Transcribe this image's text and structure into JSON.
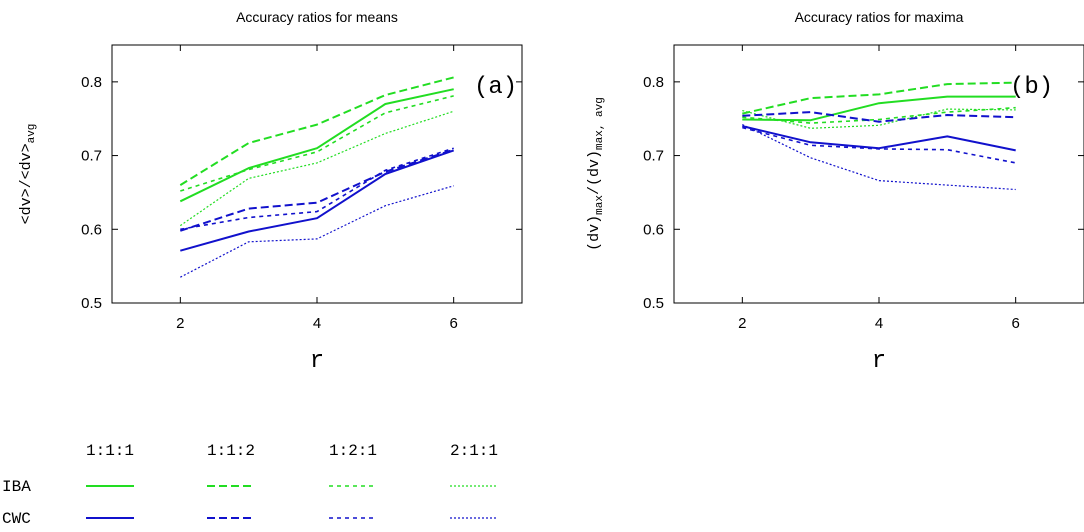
{
  "colors": {
    "IBA": "#22dd22",
    "CWC": "#1111cc"
  },
  "legend": {
    "ratios": [
      "1:1:1",
      "1:1:2",
      "1:2:1",
      "2:1:1"
    ],
    "rows": [
      "IBA",
      "CWC"
    ]
  },
  "chart_data": [
    {
      "type": "line",
      "title": "Accuracy ratios for means",
      "panel_label": "(a)",
      "xlabel": "r",
      "ylabel_main": "<dv>/<dv>",
      "ylabel_sub": "avg",
      "x": [
        2,
        3,
        4,
        5,
        6
      ],
      "xlim": [
        1,
        7
      ],
      "ylim": [
        0.5,
        0.85
      ],
      "xticks": [
        "2",
        "4",
        "6"
      ],
      "yticks": [
        "0.5",
        "0.6",
        "0.7",
        "0.8"
      ],
      "series": [
        {
          "group": "IBA",
          "ratio": "1:1:1",
          "values": [
            0.638,
            0.683,
            0.71,
            0.77,
            0.79
          ]
        },
        {
          "group": "IBA",
          "ratio": "1:1:2",
          "values": [
            0.66,
            0.717,
            0.742,
            0.782,
            0.806
          ]
        },
        {
          "group": "IBA",
          "ratio": "1:2:1",
          "values": [
            0.652,
            0.681,
            0.705,
            0.758,
            0.781
          ]
        },
        {
          "group": "IBA",
          "ratio": "2:1:1",
          "values": [
            0.605,
            0.669,
            0.69,
            0.73,
            0.76
          ]
        },
        {
          "group": "CWC",
          "ratio": "1:1:1",
          "values": [
            0.571,
            0.597,
            0.615,
            0.675,
            0.707
          ]
        },
        {
          "group": "CWC",
          "ratio": "1:1:2",
          "values": [
            0.598,
            0.628,
            0.636,
            0.678,
            0.708
          ]
        },
        {
          "group": "CWC",
          "ratio": "1:2:1",
          "values": [
            0.6,
            0.616,
            0.624,
            0.68,
            0.71
          ]
        },
        {
          "group": "CWC",
          "ratio": "2:1:1",
          "values": [
            0.535,
            0.583,
            0.587,
            0.632,
            0.659
          ]
        }
      ]
    },
    {
      "type": "line",
      "title": "Accuracy ratios for maxima",
      "panel_label": "(b)",
      "xlabel": "r",
      "ylabel_main": "(dv)",
      "ylabel_mid": "/(dv)",
      "ylabel_sub1": "max",
      "ylabel_sub2": "max, avg",
      "x": [
        2,
        3,
        4,
        5,
        6
      ],
      "xlim": [
        1,
        7
      ],
      "ylim": [
        0.5,
        0.85
      ],
      "xticks": [
        "2",
        "4",
        "6"
      ],
      "yticks": [
        "0.5",
        "0.6",
        "0.7",
        "0.8"
      ],
      "series": [
        {
          "group": "IBA",
          "ratio": "1:1:1",
          "values": [
            0.749,
            0.748,
            0.771,
            0.78,
            0.78
          ]
        },
        {
          "group": "IBA",
          "ratio": "1:1:2",
          "values": [
            0.757,
            0.778,
            0.783,
            0.797,
            0.799
          ]
        },
        {
          "group": "IBA",
          "ratio": "1:2:1",
          "values": [
            0.752,
            0.744,
            0.749,
            0.759,
            0.765
          ]
        },
        {
          "group": "IBA",
          "ratio": "2:1:1",
          "values": [
            0.761,
            0.737,
            0.741,
            0.763,
            0.762
          ]
        },
        {
          "group": "CWC",
          "ratio": "1:1:1",
          "values": [
            0.74,
            0.718,
            0.71,
            0.726,
            0.707
          ]
        },
        {
          "group": "CWC",
          "ratio": "1:1:2",
          "values": [
            0.754,
            0.759,
            0.746,
            0.755,
            0.752
          ]
        },
        {
          "group": "CWC",
          "ratio": "1:2:1",
          "values": [
            0.738,
            0.714,
            0.709,
            0.708,
            0.69
          ]
        },
        {
          "group": "CWC",
          "ratio": "2:1:1",
          "values": [
            0.742,
            0.697,
            0.666,
            0.66,
            0.654
          ]
        }
      ]
    }
  ]
}
